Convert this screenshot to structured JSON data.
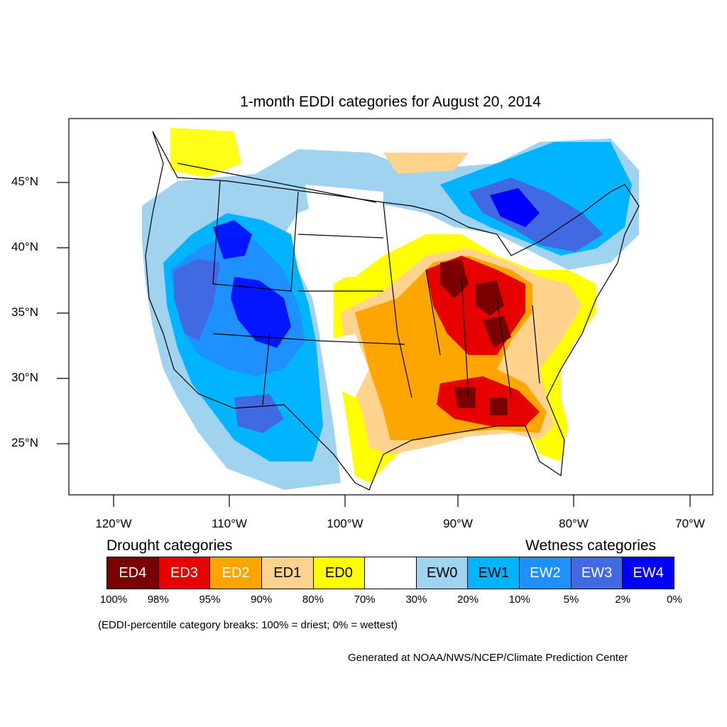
{
  "title": "1-month EDDI categories for August 20, 2014",
  "axes": {
    "lat_labels": [
      "45°N",
      "40°N",
      "35°N",
      "30°N",
      "25°N"
    ],
    "lon_labels": [
      "120°W",
      "110°W",
      "100°W",
      "90°W",
      "80°W",
      "70°W"
    ]
  },
  "legend": {
    "drought_heading": "Drought categories",
    "wetness_heading": "Wetness categories",
    "categories": [
      {
        "label": "ED4",
        "color": "#7a0000",
        "text_color": "#ffffff"
      },
      {
        "label": "ED3",
        "color": "#e60000",
        "text_color": "#ffffff"
      },
      {
        "label": "ED2",
        "color": "#ffa500",
        "text_color": "#ffffff"
      },
      {
        "label": "ED1",
        "color": "#ffd38e",
        "text_color": "#000000"
      },
      {
        "label": "ED0",
        "color": "#ffff00",
        "text_color": "#000000"
      },
      {
        "label": "",
        "color": "#ffffff",
        "text_color": "#000000"
      },
      {
        "label": "EW0",
        "color": "#9fd3f0",
        "text_color": "#000000"
      },
      {
        "label": "EW1",
        "color": "#00b4ff",
        "text_color": "#000000"
      },
      {
        "label": "EW2",
        "color": "#1e90ff",
        "text_color": "#ffffff"
      },
      {
        "label": "EW3",
        "color": "#4169e1",
        "text_color": "#ffffff"
      },
      {
        "label": "EW4",
        "color": "#0000ff",
        "text_color": "#ffffff"
      }
    ],
    "percent_breaks": [
      "100%",
      "98%",
      "95%",
      "90%",
      "80%",
      "70%",
      "30%",
      "20%",
      "10%",
      "5%",
      "2%",
      "0%"
    ]
  },
  "note": "(EDDI-percentile category breaks: 100% = driest; 0% = wettest)",
  "credit": "Generated at NOAA/NWS/NCEP/Climate Prediction Center"
}
